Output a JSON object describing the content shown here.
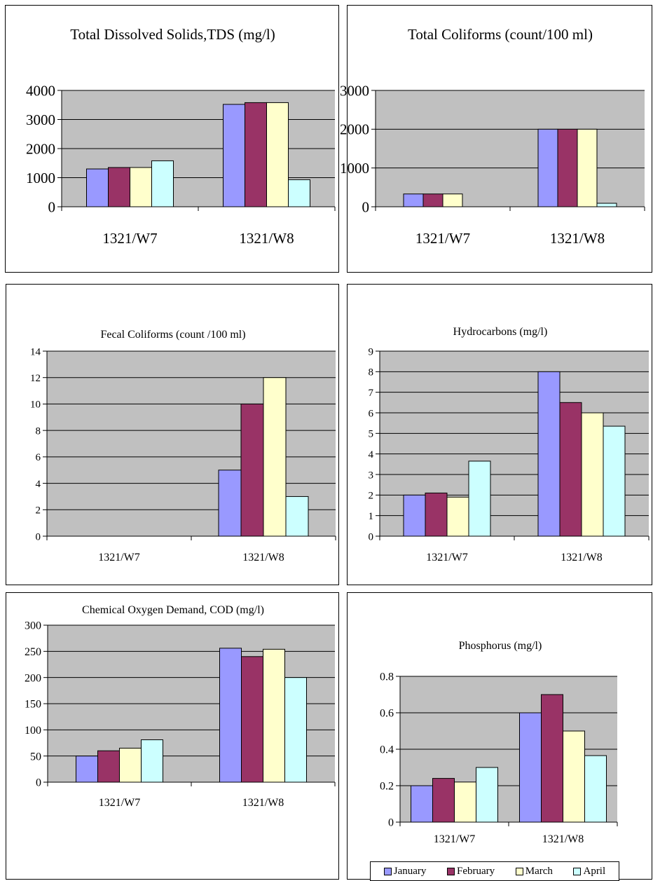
{
  "colors": {
    "plot_bg": "#c0c0c0",
    "grid": "#000000",
    "january": "#9999ff",
    "february": "#993366",
    "march": "#ffffcc",
    "april": "#ccffff"
  },
  "legend": {
    "entries": [
      {
        "label": "January",
        "color": "#9999ff"
      },
      {
        "label": "February",
        "color": "#993366"
      },
      {
        "label": "March",
        "color": "#ffffcc"
      },
      {
        "label": "April",
        "color": "#ccffff"
      }
    ]
  },
  "chart_data": [
    {
      "id": "tds",
      "type": "bar",
      "title": "Total Dissolved Solids,TDS (mg/l)",
      "categories": [
        "1321/W7",
        "1321/W8"
      ],
      "ylim": [
        0,
        4000
      ],
      "yticks": [
        "0",
        "1000",
        "2000",
        "3000",
        "4000"
      ],
      "grid": true,
      "series": [
        {
          "name": "January",
          "values": [
            1300,
            3520
          ]
        },
        {
          "name": "February",
          "values": [
            1350,
            3580
          ]
        },
        {
          "name": "March",
          "values": [
            1350,
            3580
          ]
        },
        {
          "name": "April",
          "values": [
            1580,
            930
          ]
        }
      ]
    },
    {
      "id": "total-coliforms",
      "type": "bar",
      "title": "Total Coliforms (count/100 ml)",
      "categories": [
        "1321/W7",
        "1321/W8"
      ],
      "ylim": [
        0,
        3000
      ],
      "yticks": [
        "0",
        "1000",
        "2000",
        "3000"
      ],
      "grid": true,
      "series": [
        {
          "name": "January",
          "values": [
            330,
            2000
          ]
        },
        {
          "name": "February",
          "values": [
            330,
            2000
          ]
        },
        {
          "name": "March",
          "values": [
            330,
            2000
          ]
        },
        {
          "name": "April",
          "values": [
            0,
            90
          ]
        }
      ]
    },
    {
      "id": "fecal-coliforms",
      "type": "bar",
      "title": "Fecal Coliforms (count /100 ml)",
      "categories": [
        "1321/W7",
        "1321/W8"
      ],
      "ylim": [
        0,
        14
      ],
      "yticks": [
        "0",
        "2",
        "4",
        "6",
        "8",
        "10",
        "12",
        "14"
      ],
      "grid": true,
      "series": [
        {
          "name": "January",
          "values": [
            0,
            5
          ]
        },
        {
          "name": "February",
          "values": [
            0,
            10
          ]
        },
        {
          "name": "March",
          "values": [
            0,
            12
          ]
        },
        {
          "name": "April",
          "values": [
            0,
            3
          ]
        }
      ]
    },
    {
      "id": "hydrocarbons",
      "type": "bar",
      "title": "Hydrocarbons (mg/l)",
      "categories": [
        "1321/W7",
        "1321/W8"
      ],
      "ylim": [
        0,
        9
      ],
      "yticks": [
        "0",
        "1",
        "2",
        "3",
        "4",
        "5",
        "6",
        "7",
        "8",
        "9"
      ],
      "grid": true,
      "series": [
        {
          "name": "January",
          "values": [
            2,
            8
          ]
        },
        {
          "name": "February",
          "values": [
            2.1,
            6.5
          ]
        },
        {
          "name": "March",
          "values": [
            1.9,
            6
          ]
        },
        {
          "name": "April",
          "values": [
            3.65,
            5.35
          ]
        }
      ]
    },
    {
      "id": "cod",
      "type": "bar",
      "title": "Chemical Oxygen Demand, COD (mg/l)",
      "categories": [
        "1321/W7",
        "1321/W8"
      ],
      "ylim": [
        0,
        300
      ],
      "yticks": [
        "0",
        "50",
        "100",
        "150",
        "200",
        "250",
        "300"
      ],
      "grid": true,
      "series": [
        {
          "name": "January",
          "values": [
            50,
            256
          ]
        },
        {
          "name": "February",
          "values": [
            60,
            240
          ]
        },
        {
          "name": "March",
          "values": [
            65,
            254
          ]
        },
        {
          "name": "April",
          "values": [
            81,
            200
          ]
        }
      ]
    },
    {
      "id": "phosphorus",
      "type": "bar",
      "title": "Phosphorus (mg/l)",
      "categories": [
        "1321/W7",
        "1321/W8"
      ],
      "ylim": [
        0,
        0.8
      ],
      "yticks": [
        "0",
        "0.2",
        "0.4",
        "0.6",
        "0.8"
      ],
      "grid": true,
      "legend_position": "bottom",
      "series": [
        {
          "name": "January",
          "values": [
            0.2,
            0.6
          ]
        },
        {
          "name": "February",
          "values": [
            0.24,
            0.7
          ]
        },
        {
          "name": "March",
          "values": [
            0.22,
            0.5
          ]
        },
        {
          "name": "April",
          "values": [
            0.3,
            0.365
          ]
        }
      ]
    }
  ]
}
